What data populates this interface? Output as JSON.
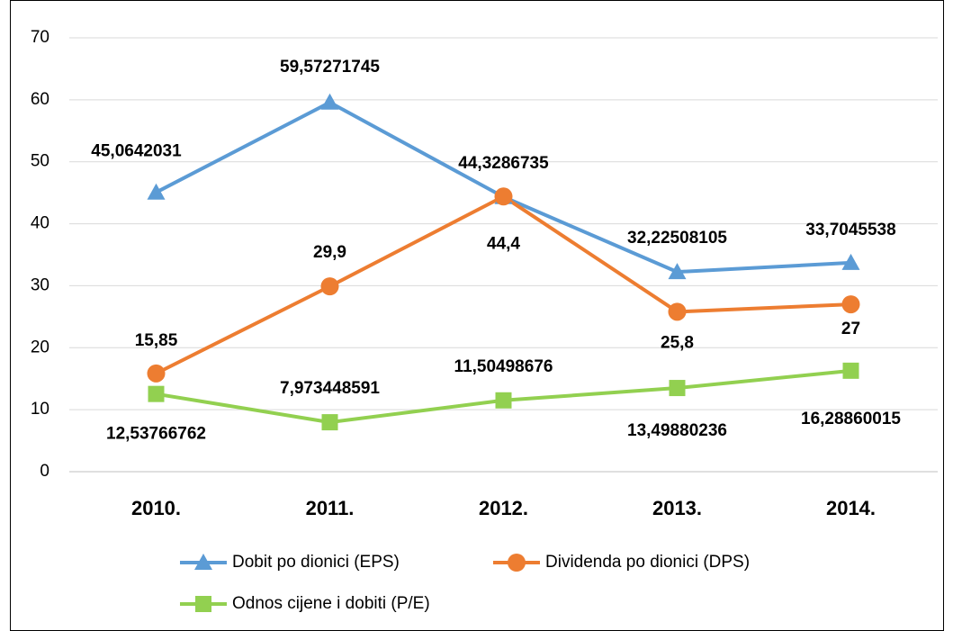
{
  "chart_data": {
    "type": "line",
    "categories": [
      "2010.",
      "2011.",
      "2012.",
      "2013.",
      "2014."
    ],
    "series": [
      {
        "name": "Dobit po dionici (EPS)",
        "color": "#5b9bd5",
        "marker": "triangle",
        "values": [
          45.0642031,
          59.57271745,
          44.3286735,
          32.22508105,
          33.7045538
        ],
        "value_labels": [
          "45,0642031",
          "59,57271745",
          "44,3286735",
          "32,22508105",
          "33,7045538"
        ]
      },
      {
        "name": "Dividenda po dionici (DPS)",
        "color": "#ed7d31",
        "marker": "circle",
        "values": [
          15.85,
          29.9,
          44.4,
          25.8,
          27
        ],
        "value_labels": [
          "15,85",
          "29,9",
          "44,4",
          "25,8",
          "27"
        ]
      },
      {
        "name": "Odnos cijene i dobiti (P/E)",
        "color": "#92d050",
        "marker": "square",
        "values": [
          12.53766762,
          7.973448591,
          11.50498676,
          13.49880236,
          16.28860015
        ],
        "value_labels": [
          "12,53766762",
          "7,973448591",
          "11,50498676",
          "13,49880236",
          "16,28860015"
        ]
      }
    ],
    "ylim": [
      0,
      70
    ],
    "yticks": [
      0,
      10,
      20,
      30,
      40,
      50,
      60,
      70
    ],
    "grid": true
  }
}
